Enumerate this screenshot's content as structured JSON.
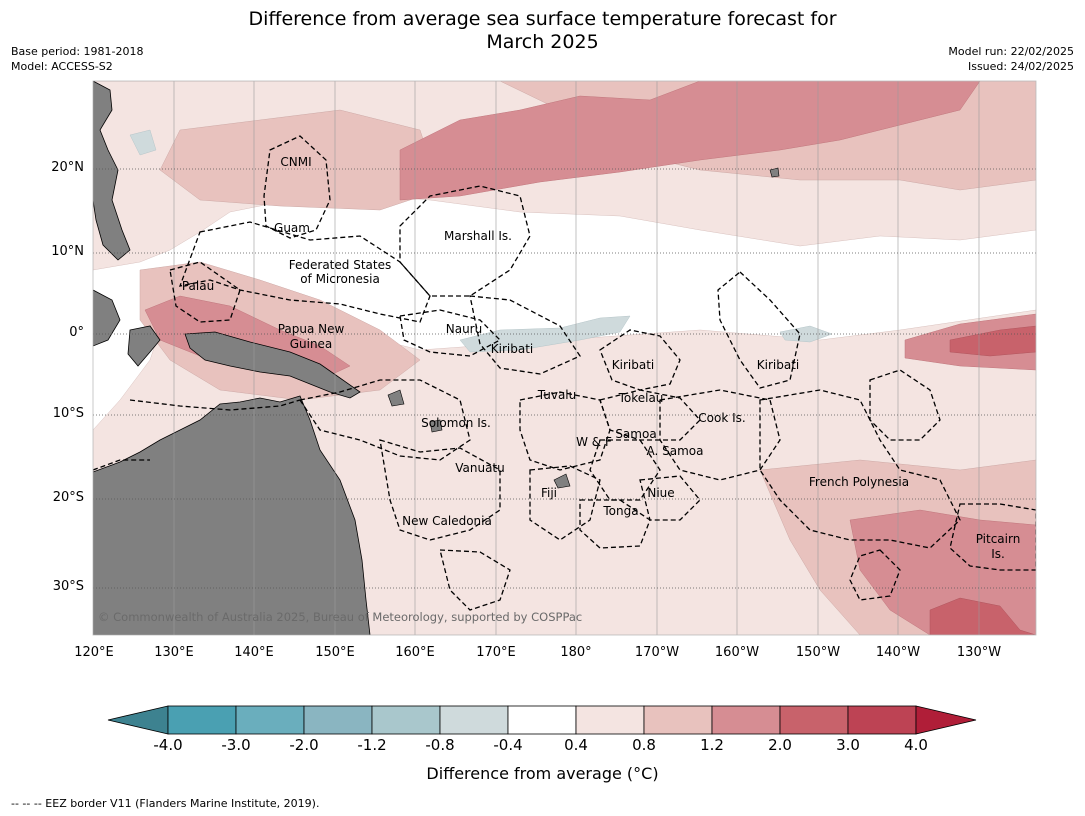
{
  "title_line1": "Difference from average sea surface temperature forecast for",
  "title_line2": "March 2025",
  "meta": {
    "base_period": "Base period: 1981-2018",
    "model": "Model: ACCESS-S2",
    "model_run": "Model run: 22/02/2025",
    "issued": "Issued: 24/02/2025"
  },
  "axes": {
    "lon_labels": [
      "120°E",
      "130°E",
      "140°E",
      "150°E",
      "160°E",
      "170°E",
      "180°",
      "170°W",
      "160°W",
      "150°W",
      "140°W",
      "130°W"
    ],
    "lat_labels": [
      "20°N",
      "10°N",
      "0°",
      "10°S",
      "20°S",
      "30°S"
    ]
  },
  "regions": [
    {
      "name": "CNMI"
    },
    {
      "name": "Guam"
    },
    {
      "name": "Marshall Is."
    },
    {
      "name": "Federated States"
    },
    {
      "name": "of Micronesia"
    },
    {
      "name": "Palau"
    },
    {
      "name": "Nauru"
    },
    {
      "name": "Papua New"
    },
    {
      "name": "Guinea"
    },
    {
      "name": "Kiribati"
    },
    {
      "name": "Kiribati"
    },
    {
      "name": "Kiribati"
    },
    {
      "name": "Tuvalu"
    },
    {
      "name": "Tokelau"
    },
    {
      "name": "Solomon Is."
    },
    {
      "name": "Cook Is."
    },
    {
      "name": "Samoa"
    },
    {
      "name": "W & F"
    },
    {
      "name": "A. Samoa"
    },
    {
      "name": "Vanuatu"
    },
    {
      "name": "Fiji"
    },
    {
      "name": "Niue"
    },
    {
      "name": "French Polynesia"
    },
    {
      "name": "Tonga"
    },
    {
      "name": "New Caledonia"
    },
    {
      "name": "Pitcairn"
    },
    {
      "name": "Is."
    }
  ],
  "copyright": "© Commonwealth of Australia 2025, Bureau of Meteorology, supported by COSPPac",
  "colorbar": {
    "title": "Difference from average (°C)",
    "ticks": [
      "-4.0",
      "-3.0",
      "-2.0",
      "-1.2",
      "-0.8",
      "-0.4",
      "0.4",
      "0.8",
      "1.2",
      "2.0",
      "3.0",
      "4.0"
    ],
    "colors": [
      "#3d8290",
      "#4aa0b2",
      "#6aaebd",
      "#8ab5c1",
      "#a9c7cc",
      "#cfdadc",
      "#ffffff",
      "#f4e4e1",
      "#e8c2be",
      "#d68d93",
      "#c8626b",
      "#bd4354",
      "#b01e38"
    ]
  },
  "footer": "-- -- -- EEZ border V11 (Flanders Marine Institute, 2019)."
}
